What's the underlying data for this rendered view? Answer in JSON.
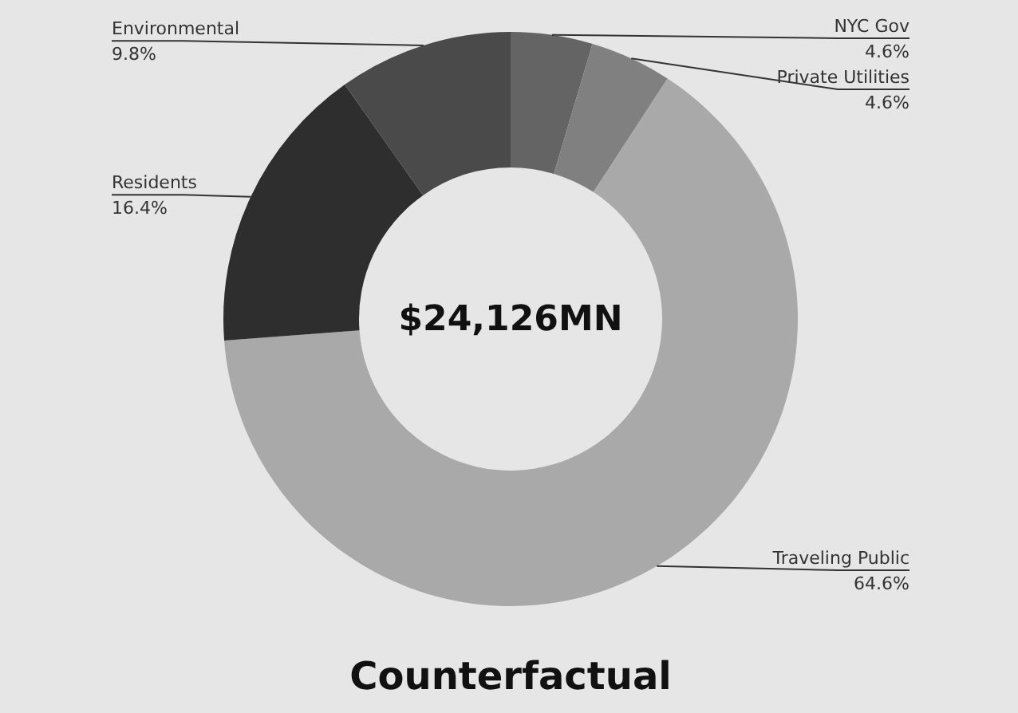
{
  "chart_data": {
    "type": "donut",
    "title": "Counterfactual",
    "annotations": [
      "$24,126MN"
    ],
    "categories": [
      "NYC Gov",
      "Private Utilities",
      "Traveling Public",
      "Residents",
      "Environmental"
    ],
    "values": [
      4.6,
      4.6,
      64.6,
      16.4,
      9.8
    ],
    "value_labels": [
      "4.6%",
      "4.6%",
      "64.6%",
      "16.4%",
      "9.8%"
    ],
    "colors": [
      "#646464",
      "#808080",
      "#a9a9a9",
      "#2e2e2e",
      "#4a4a4a"
    ]
  }
}
